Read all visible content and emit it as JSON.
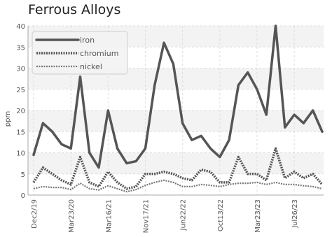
{
  "chart_data": {
    "type": "line",
    "title": "Ferrous Alloys",
    "xlabel": "",
    "ylabel": "ppm",
    "ylim": [
      0,
      40
    ],
    "yticks": [
      0,
      5,
      10,
      15,
      20,
      25,
      30,
      35,
      40
    ],
    "x_tick_labels": [
      "Dec2/19",
      "Mar23/20",
      "Mar16/21",
      "Nov17/21",
      "Jun22/22",
      "Oct13/22",
      "Mar23/23",
      "Jul26/23"
    ],
    "x_tick_indices": [
      0,
      4,
      8,
      12,
      16,
      20,
      24,
      28
    ],
    "grid": true,
    "legend_position": "top-left",
    "series": [
      {
        "name": "iron",
        "style": "solid",
        "color": "#555555",
        "values": [
          9.5,
          17,
          15,
          12,
          11,
          28,
          10,
          6.5,
          20,
          11,
          7.5,
          8,
          11,
          26,
          36,
          31,
          17,
          13,
          14,
          11,
          9,
          13,
          26,
          29,
          25,
          19,
          40,
          16,
          19,
          17,
          20,
          15
        ]
      },
      {
        "name": "chromium",
        "style": "dotted",
        "color": "#555555",
        "values": [
          3,
          6.5,
          5,
          3.5,
          2.5,
          9,
          3,
          2,
          5.5,
          3,
          1.5,
          2,
          5,
          5,
          5.5,
          5,
          4,
          3.5,
          6,
          5.5,
          3,
          3,
          9,
          5,
          5,
          3.5,
          11,
          4,
          5.5,
          4,
          5,
          2.5
        ]
      },
      {
        "name": "nickel",
        "style": "dashed",
        "color": "#777777",
        "values": [
          1.5,
          2,
          1.8,
          1.8,
          1.3,
          2.8,
          1.5,
          1.2,
          2.2,
          1.5,
          0.8,
          1.3,
          2.3,
          3,
          3.5,
          3,
          2,
          2,
          2.5,
          2.3,
          2,
          2.5,
          2.8,
          2.8,
          3,
          2.5,
          3,
          2.5,
          2.5,
          2.2,
          2,
          1.5
        ]
      }
    ]
  }
}
